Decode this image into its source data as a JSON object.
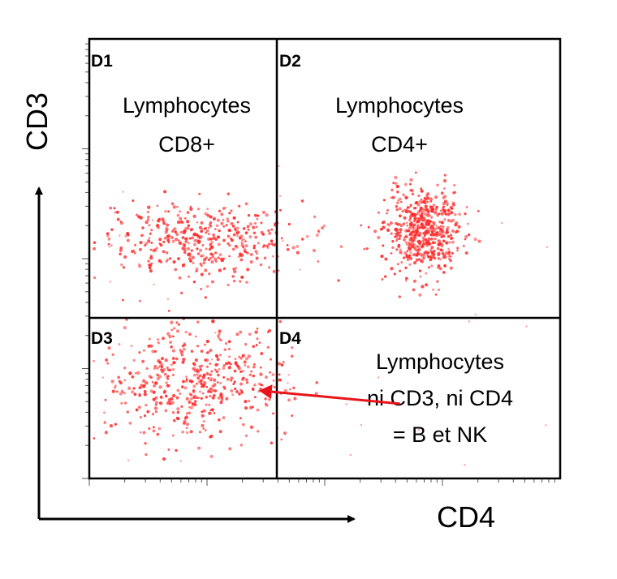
{
  "chart_data": {
    "type": "scatter",
    "title": "",
    "xlabel": "CD4",
    "ylabel": "CD3",
    "xlim": [
      0,
      100
    ],
    "ylim": [
      0,
      100
    ],
    "grid": false,
    "point_color": "#ff2a2a",
    "annotation_color": "#e8141b",
    "quadrant_gates": {
      "x": 50,
      "y": 38
    },
    "quadrants": [
      {
        "id": "D1",
        "lines": [
          "Lymphocytes",
          "CD8+"
        ]
      },
      {
        "id": "D2",
        "lines": [
          "Lymphocytes",
          "CD4+"
        ]
      },
      {
        "id": "D3",
        "lines": []
      },
      {
        "id": "D4",
        "lines": [
          "Lymphocytes",
          "ni CD3, ni CD4",
          "= B et NK"
        ]
      }
    ],
    "series": [
      {
        "quadrant": "D1",
        "center": [
          23,
          54
        ],
        "spread": [
          11,
          4.5
        ],
        "count": 420
      },
      {
        "quadrant": "D2",
        "center": [
          71,
          56
        ],
        "spread": [
          4,
          5
        ],
        "count": 520
      },
      {
        "quadrant": "D3",
        "center": [
          22,
          22
        ],
        "spread": [
          10,
          6.5
        ],
        "count": 480
      }
    ],
    "arrow": {
      "from": [
        66,
        17
      ],
      "to": [
        36,
        20
      ]
    }
  }
}
